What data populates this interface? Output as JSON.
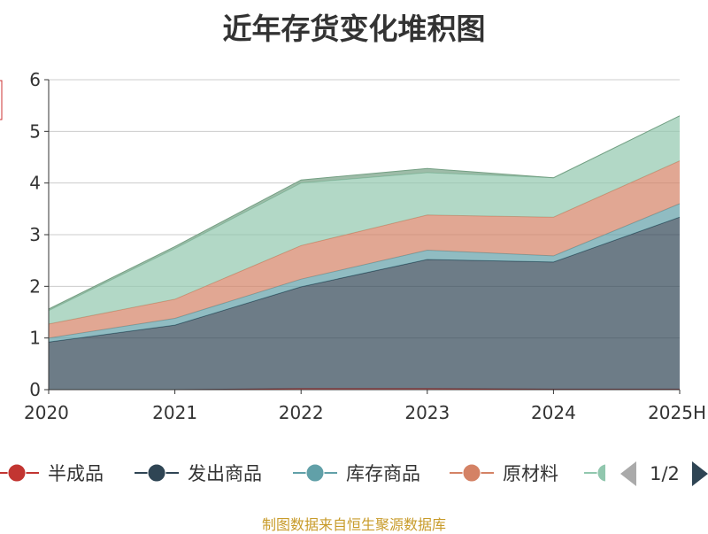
{
  "chart_data": {
    "type": "area",
    "title": "近年存货变化堆积图",
    "ylabel": "",
    "xlabel": "",
    "categories": [
      "2020",
      "2021",
      "2022",
      "2023",
      "2024",
      "2025H"
    ],
    "y_ticks": [
      "0",
      "1",
      "2",
      "3",
      "4",
      "5",
      "6"
    ],
    "ylim": [
      0,
      6
    ],
    "stacked": true,
    "grid": true,
    "legend_position": "bottom",
    "series": [
      {
        "name": "半成品",
        "color": "#c23531",
        "values": [
          0.0,
          0.0,
          0.02,
          0.02,
          0.01,
          0.01
        ]
      },
      {
        "name": "发出商品",
        "color": "#2f4554",
        "values": [
          0.92,
          1.25,
          1.97,
          2.5,
          2.46,
          3.33
        ]
      },
      {
        "name": "库存商品",
        "color": "#61a0a8",
        "values": [
          0.08,
          0.13,
          0.15,
          0.18,
          0.12,
          0.26
        ]
      },
      {
        "name": "原材料",
        "color": "#d48265",
        "values": [
          0.27,
          0.37,
          0.65,
          0.68,
          0.75,
          0.83
        ]
      },
      {
        "name": "",
        "color": "#91c7ae",
        "values": [
          0.26,
          0.98,
          1.21,
          0.82,
          0.76,
          0.87
        ]
      },
      {
        "name": "",
        "color": "#749f83",
        "values": [
          0.03,
          0.04,
          0.06,
          0.08,
          0.0,
          0.0
        ]
      }
    ]
  },
  "legend": {
    "items": [
      {
        "name": "半成品",
        "color": "#c23531"
      },
      {
        "name": "发出商品",
        "color": "#2f4554"
      },
      {
        "name": "库存商品",
        "color": "#61a0a8"
      },
      {
        "name": "原材料",
        "color": "#d48265"
      },
      {
        "name": "",
        "color": "#91c7ae"
      }
    ],
    "page_label": "1/2"
  },
  "source_note": "制图数据来自恒生聚源数据库"
}
